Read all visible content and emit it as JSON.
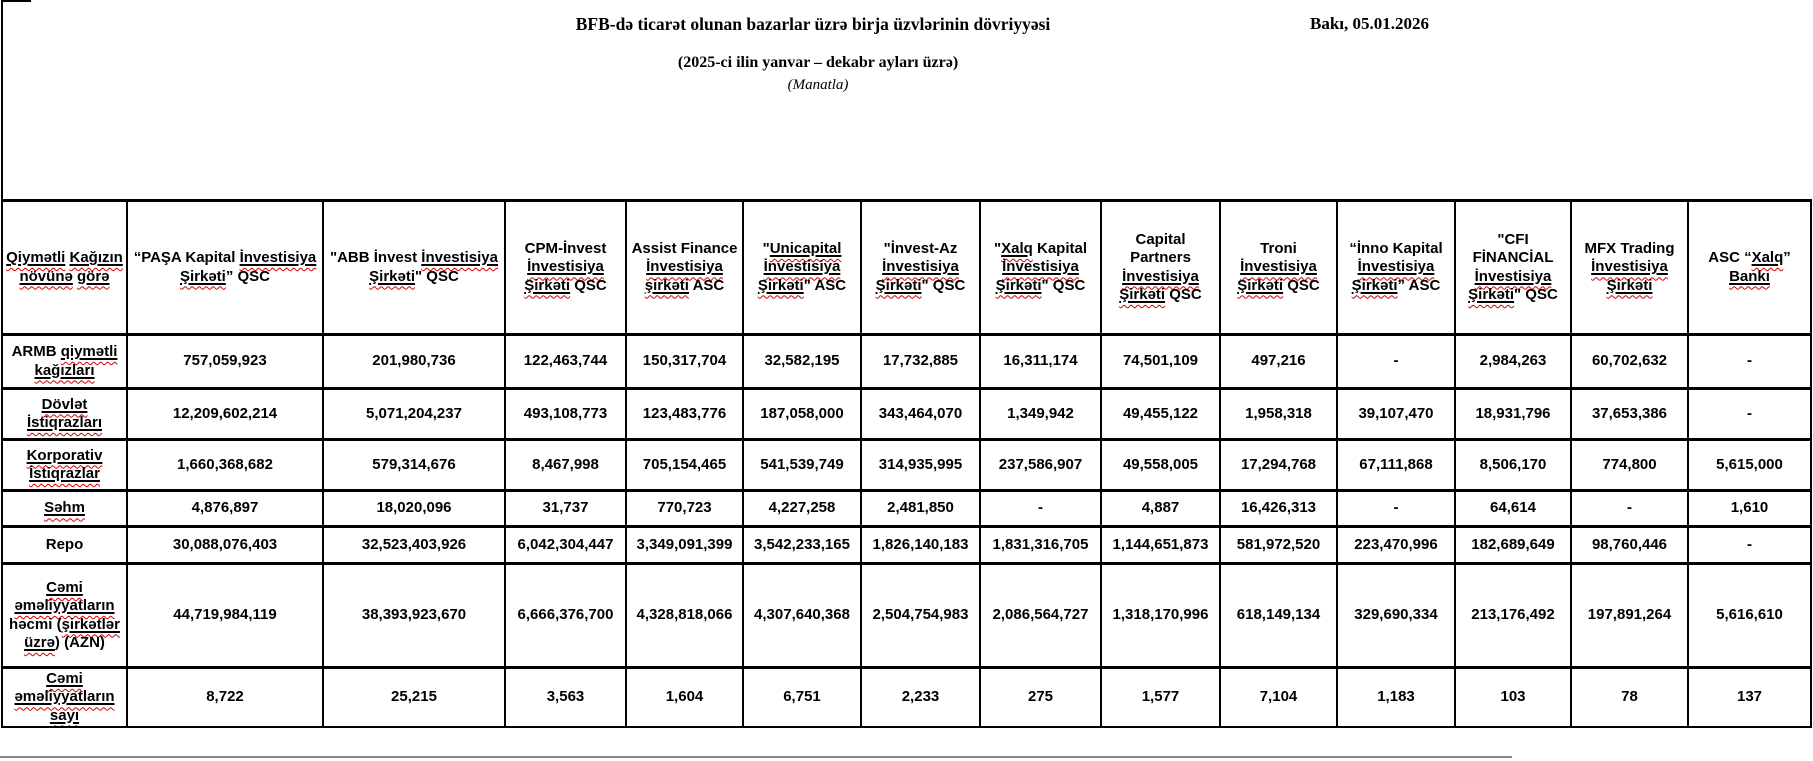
{
  "header": {
    "title": "BFB-də ticarət olunan bazarlar üzrə birja üzvlərinin dövriyyəsi",
    "date": "Bakı, 05.01.2026",
    "subtitle": "(2025-ci ilin yanvar – dekabr ayları üzrə)",
    "unit_note": "(Manatla)"
  },
  "table": {
    "corner_label": "Qiymətli Kağızın növünə görə",
    "companies": [
      "“PAŞA Kapital İnvestisiya Şirkəti” QSC",
      "\"ABB İnvest İnvestisiya Şirkəti\" QSC",
      "CPM-İnvest İnvestisiya Şirkəti QSC",
      "Assist Finance İnvestisiya şirkəti ASC",
      "\"Unicapital İnvestisiya Şirkəti\" ASC",
      "\"İnvest-Az İnvestisiya Şirkəti\" QSC",
      "\"Xalq Kapital İnvestisiya Şirkəti\" QSC",
      "Capital Partners İnvestisiya Şirkəti QSC",
      "Troni İnvestisiya Şirkəti QSC",
      "“İnno Kapital İnvestisiya Şirkəti” ASC",
      "\"CFI FİNANCİAL İnvestisiya Şirkəti\" QSC",
      "MFX Trading İnvestisiya Şirkəti",
      "ASC “Xalq” Bankı"
    ],
    "rows": [
      {
        "label": "ARMB qiymətli kağızları",
        "values": [
          "757,059,923",
          "201,980,736",
          "122,463,744",
          "150,317,704",
          "32,582,195",
          "17,732,885",
          "16,311,174",
          "74,501,109",
          "497,216",
          "-",
          "2,984,263",
          "60,702,632",
          "-"
        ]
      },
      {
        "label": "Dövlət İstiqrazları",
        "values": [
          "12,209,602,214",
          "5,071,204,237",
          "493,108,773",
          "123,483,776",
          "187,058,000",
          "343,464,070",
          "1,349,942",
          "49,455,122",
          "1,958,318",
          "39,107,470",
          "18,931,796",
          "37,653,386",
          "-"
        ]
      },
      {
        "label": "Korporativ İstiqrazlar",
        "values": [
          "1,660,368,682",
          "579,314,676",
          "8,467,998",
          "705,154,465",
          "541,539,749",
          "314,935,995",
          "237,586,907",
          "49,558,005",
          "17,294,768",
          "67,111,868",
          "8,506,170",
          "774,800",
          "5,615,000"
        ]
      },
      {
        "label": "Səhm",
        "values": [
          "4,876,897",
          "18,020,096",
          "31,737",
          "770,723",
          "4,227,258",
          "2,481,850",
          "-",
          "4,887",
          "16,426,313",
          "-",
          "64,614",
          "-",
          "1,610"
        ]
      },
      {
        "label": "Repo",
        "values": [
          "30,088,076,403",
          "32,523,403,926",
          "6,042,304,447",
          "3,349,091,399",
          "3,542,233,165",
          "1,826,140,183",
          "1,831,316,705",
          "1,144,651,873",
          "581,972,520",
          "223,470,996",
          "182,689,649",
          "98,760,446",
          "-"
        ]
      },
      {
        "label": "Cəmi əməliyyatların həcmi (şirkətlər üzrə) (AZN)",
        "values": [
          "44,719,984,119",
          "38,393,923,670",
          "6,666,376,700",
          "4,328,818,066",
          "4,307,640,368",
          "2,504,754,983",
          "2,086,564,727",
          "1,318,170,996",
          "618,149,134",
          "329,690,334",
          "213,176,492",
          "197,891,264",
          "5,616,610"
        ]
      },
      {
        "label": "Cəmi əməliyyatların sayı",
        "values": [
          "8,722",
          "25,215",
          "3,563",
          "1,604",
          "6,751",
          "2,233",
          "275",
          "1,577",
          "7,104",
          "1,183",
          "103",
          "78",
          "137"
        ]
      }
    ]
  },
  "spellcheck_words": [
    "Qiymətli",
    "Kağızın",
    "növünə",
    "görə",
    "İnvestisiya",
    "Şirkəti",
    "şirkəti",
    "Unicapital",
    "Xalq",
    "Bankı",
    "qiymətli",
    "kağızları",
    "Dövlət",
    "İstiqrazları",
    "Korporativ",
    "İstiqrazlar",
    "Səhm",
    "Cəmi",
    "əməliyyatların",
    "şirkətlər",
    "üzrə",
    "sayı"
  ],
  "colors": {
    "squiggle": "#d40000",
    "border": "#000000"
  }
}
